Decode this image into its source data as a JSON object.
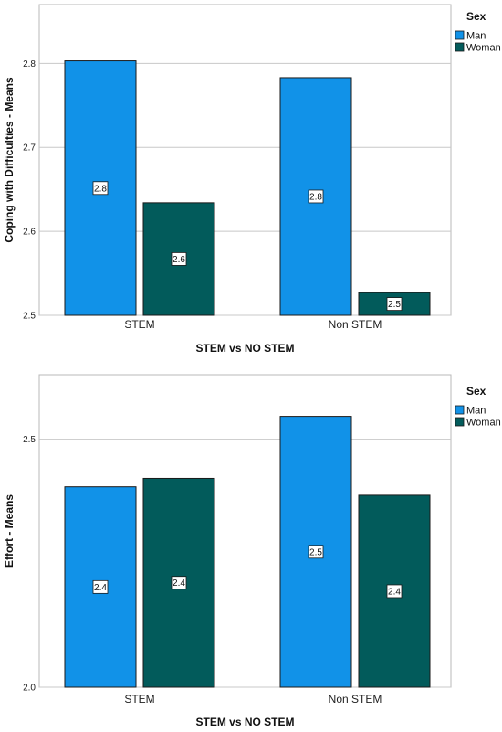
{
  "chart_data": [
    {
      "type": "bar",
      "categories": [
        "STEM",
        "Non STEM"
      ],
      "series": [
        {
          "name": "Man",
          "color": "#1192e8",
          "values": [
            2.803,
            2.783
          ]
        },
        {
          "name": "Woman",
          "color": "#025b5b",
          "values": [
            2.634,
            2.527
          ]
        }
      ],
      "data_labels": [
        [
          "2.8",
          "2.6"
        ],
        [
          "2.8",
          "2.5"
        ]
      ],
      "xlabel": "STEM vs NO STEM",
      "ylabel": "Coping with Difficulties - Means",
      "ylim": [
        2.5,
        2.87
      ],
      "yticks": [
        "2.5",
        "2.6",
        "2.7",
        "2.8"
      ],
      "legend_title": "Sex",
      "legend_position": "top-right",
      "grid": true
    },
    {
      "type": "bar",
      "categories": [
        "STEM",
        "Non STEM"
      ],
      "series": [
        {
          "name": "Man",
          "color": "#1192e8",
          "values": [
            2.404,
            2.546
          ]
        },
        {
          "name": "Woman",
          "color": "#025b5b",
          "values": [
            2.421,
            2.387
          ]
        }
      ],
      "data_labels": [
        [
          "2.4",
          "2.4"
        ],
        [
          "2.5",
          "2.4"
        ]
      ],
      "xlabel": "STEM vs NO STEM",
      "ylabel": "Effort - Means",
      "ylim": [
        2.0,
        2.63
      ],
      "yticks": [
        "2.0",
        "2.5"
      ],
      "legend_title": "Sex",
      "legend_position": "top-right",
      "grid": true
    }
  ]
}
